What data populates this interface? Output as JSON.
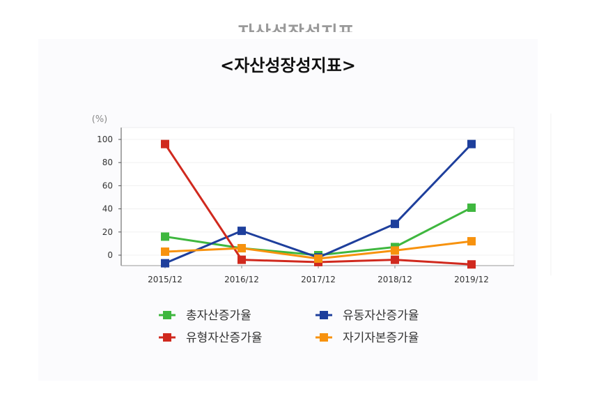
{
  "page": {
    "ghost_title": "자산성장성지표"
  },
  "chart_data": {
    "type": "line",
    "title": "<자산성장성지표>",
    "unit_label": "(%)",
    "xlabel": "",
    "ylabel": "",
    "ylim": [
      -10,
      110
    ],
    "y_ticks": [
      0,
      20,
      40,
      60,
      80,
      100
    ],
    "categories": [
      "2015/12",
      "2016/12",
      "2017/12",
      "2018/12",
      "2019/12"
    ],
    "grid": true,
    "legend_position": "bottom",
    "series": [
      {
        "name": "총자산증가율",
        "color": "#3fb73f",
        "values": [
          16,
          6,
          0,
          7,
          41
        ]
      },
      {
        "name": "유동자산증가율",
        "color": "#1e3f9c",
        "values": [
          -7,
          21,
          -2,
          27,
          96
        ]
      },
      {
        "name": "유형자산증가율",
        "color": "#d0291e",
        "values": [
          96,
          -4,
          -6,
          -4,
          -8
        ]
      },
      {
        "name": "자기자본증가율",
        "color": "#f7920e",
        "values": [
          3,
          6,
          -3,
          4,
          12
        ]
      }
    ]
  }
}
